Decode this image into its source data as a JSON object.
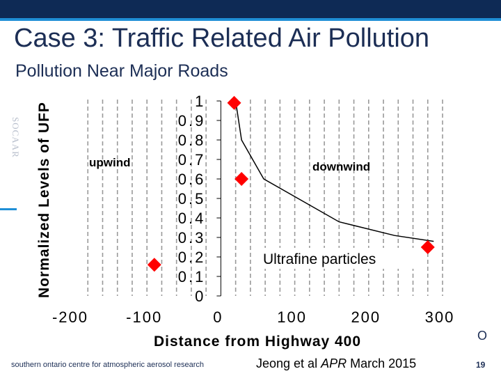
{
  "slide": {
    "title": "Case 3: Traffic Related Air Pollution",
    "subtitle": "Pollution Near Major Roads",
    "side_logo": "SOCAAR",
    "right_mark": "O",
    "footer_org": "southern ontario centre for atmospheric aerosol research",
    "citation": {
      "prefix": "Jeong et al ",
      "journal": "APR",
      "suffix": " March 2015"
    },
    "page_number": "19"
  },
  "chart_data": {
    "type": "scatter",
    "ylabel": "Normalized Levels of UFP",
    "xlabel": "Distance from Highway 400",
    "xlim": [
      -200,
      300
    ],
    "ylim": [
      0,
      1
    ],
    "x_ticks": [
      "-200",
      "-100",
      "0",
      "100",
      "200",
      "300"
    ],
    "y_ticks": [
      "0",
      "0.1",
      "0.2",
      "0.3",
      "0.4",
      "0.5",
      "0.6",
      "0.7",
      "0.8",
      "0.9",
      "1"
    ],
    "grid": "vertical dashed",
    "annotations": [
      "upwind",
      "downwind",
      "Ultrafine particles"
    ],
    "series": [
      {
        "type": "scatter",
        "marker": "diamond",
        "color": "#ff0000",
        "x": [
          -90,
          18,
          28,
          280
        ],
        "y": [
          0.16,
          0.99,
          0.6,
          0.25
        ]
      },
      {
        "type": "line",
        "color": "#000000",
        "x": [
          20,
          28,
          58,
          160,
          235,
          288
        ],
        "y": [
          1.0,
          0.8,
          0.6,
          0.38,
          0.31,
          0.28
        ]
      }
    ]
  }
}
